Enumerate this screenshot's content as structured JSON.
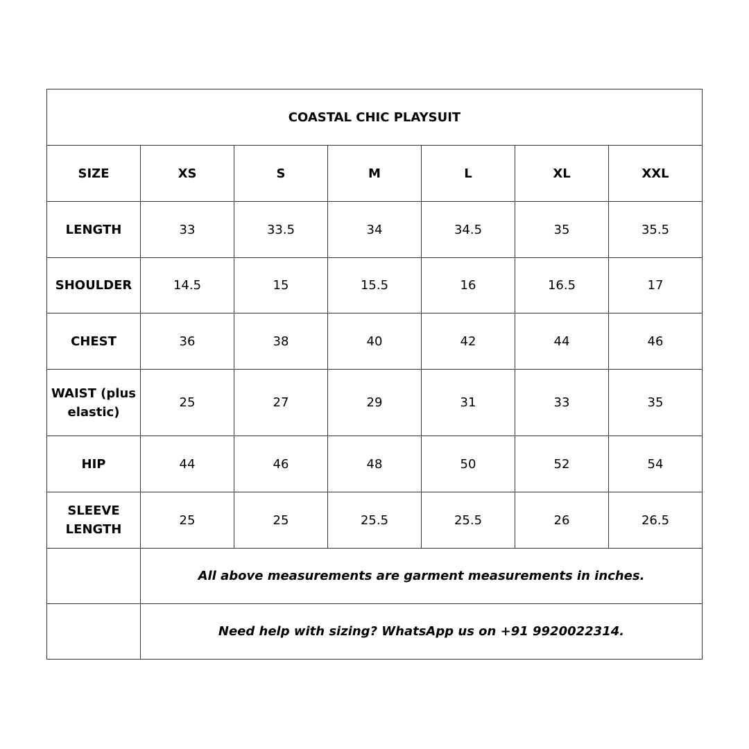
{
  "title": "COASTAL CHIC PLAYSUIT",
  "header": [
    "SIZE",
    "XS",
    "S",
    "M",
    "L",
    "XL",
    "XXL"
  ],
  "rows": [
    {
      "label": "LENGTH",
      "values": [
        "33",
        "33.5",
        "34",
        "34.5",
        "35",
        "35.5"
      ]
    },
    {
      "label": "SHOULDER",
      "values": [
        "14.5",
        "15",
        "15.5",
        "16",
        "16.5",
        "17"
      ]
    },
    {
      "label": "CHEST",
      "values": [
        "36",
        "38",
        "40",
        "42",
        "44",
        "46"
      ]
    },
    {
      "label": "WAIST (plus elastic)",
      "values": [
        "25",
        "27",
        "29",
        "31",
        "33",
        "35"
      ]
    },
    {
      "label": "HIP",
      "values": [
        "44",
        "46",
        "48",
        "50",
        "52",
        "54"
      ]
    },
    {
      "label": "SLEEVE LENGTH",
      "values": [
        "25",
        "25",
        "25.5",
        "25.5",
        "26",
        "26.5"
      ]
    }
  ],
  "notes": [
    "All above measurements are garment measurements in inches.",
    "Need help with sizing? WhatsApp us on +91 9920022314."
  ]
}
